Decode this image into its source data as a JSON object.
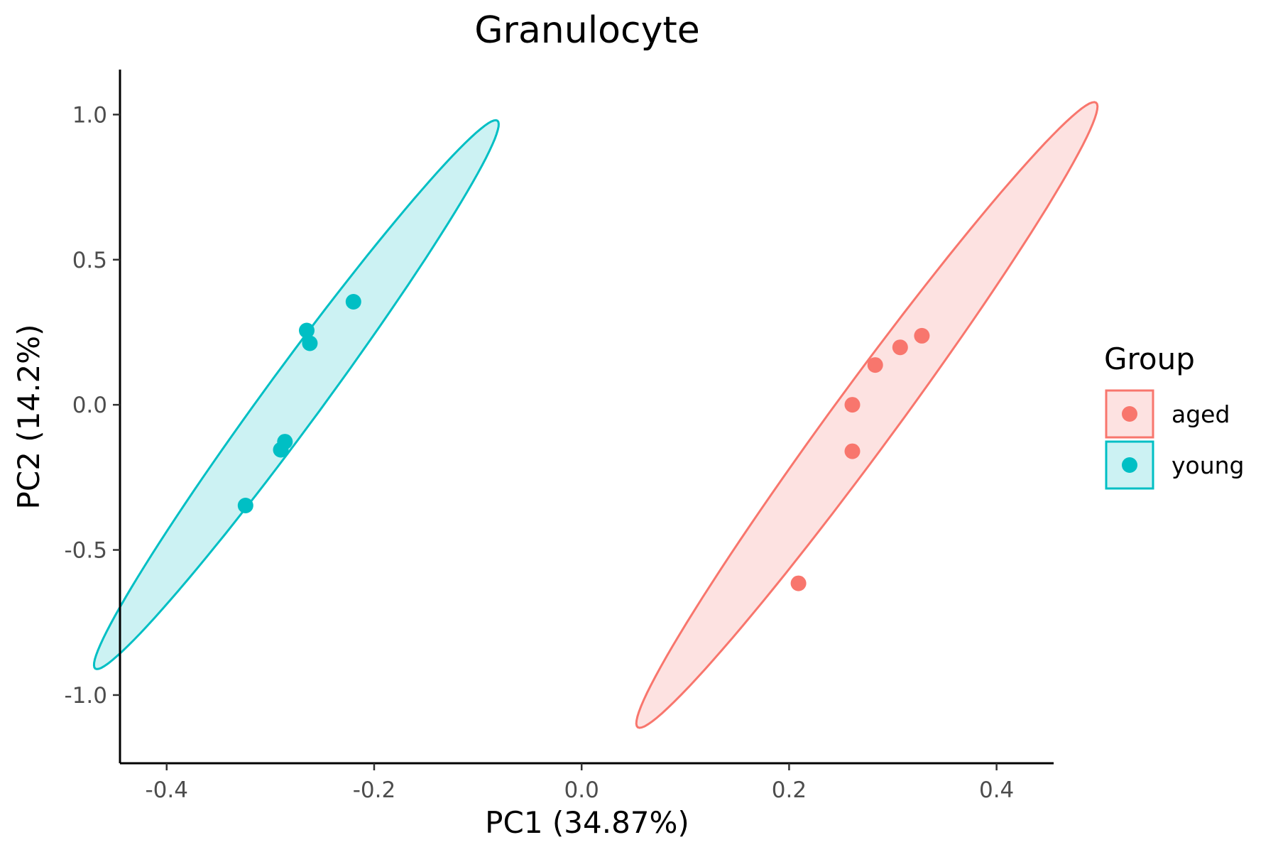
{
  "chart_data": {
    "type": "scatter",
    "title": "Granulocyte",
    "xlabel": "PC1 (34.87%)",
    "ylabel": "PC2 (14.2%)",
    "xlim": [
      -0.445,
      0.455
    ],
    "ylim": [
      -1.235,
      1.155
    ],
    "x_ticks": [
      -0.4,
      -0.2,
      0.0,
      0.2,
      0.4
    ],
    "x_tick_labels": [
      "-0.4",
      "-0.2",
      "0.0",
      "0.2",
      "0.4"
    ],
    "y_ticks": [
      -1.0,
      -0.5,
      0.0,
      0.5,
      1.0
    ],
    "y_tick_labels": [
      "-1.0",
      "-0.5",
      "0.0",
      "0.5",
      "1.0"
    ],
    "grid": false,
    "legend": {
      "title": "Group",
      "placement": "right"
    },
    "series": [
      {
        "name": "aged",
        "color": "#F8766D",
        "fill": "#FDE2E1",
        "points": [
          {
            "x": 0.209,
            "y": -0.615
          },
          {
            "x": 0.261,
            "y": -0.16
          },
          {
            "x": 0.261,
            "y": 0.0
          },
          {
            "x": 0.283,
            "y": 0.137
          },
          {
            "x": 0.307,
            "y": 0.198
          },
          {
            "x": 0.328,
            "y": 0.238
          }
        ],
        "ellipse": {
          "cx": 0.275,
          "cy": -0.035,
          "angle_deg": 78.5,
          "semi_major": 1.1,
          "semi_minor": 0.037
        }
      },
      {
        "name": "young",
        "color": "#00BFC4",
        "fill": "#CCF2F3",
        "points": [
          {
            "x": -0.324,
            "y": -0.347
          },
          {
            "x": -0.29,
            "y": -0.155
          },
          {
            "x": -0.286,
            "y": -0.127
          },
          {
            "x": -0.262,
            "y": 0.212
          },
          {
            "x": -0.265,
            "y": 0.256
          },
          {
            "x": -0.22,
            "y": 0.355
          }
        ],
        "ellipse": {
          "cx": -0.275,
          "cy": 0.035,
          "angle_deg": 78.5,
          "semi_major": 0.965,
          "semi_minor": 0.033
        }
      }
    ]
  }
}
